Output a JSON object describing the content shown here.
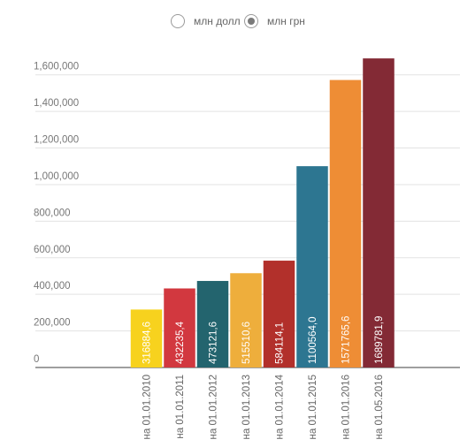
{
  "legend": {
    "options": [
      {
        "label": "млн долл",
        "selected": false
      },
      {
        "label": "млн грн",
        "selected": true
      }
    ]
  },
  "chart_data": {
    "type": "bar",
    "title": "",
    "xlabel": "",
    "ylabel": "",
    "ylim": [
      0,
      1700000
    ],
    "yticks": [
      0,
      200000,
      400000,
      600000,
      800000,
      1000000,
      1200000,
      1400000,
      1600000
    ],
    "ytick_labels": [
      "0",
      "200,000",
      "400,000",
      "600,000",
      "800,000",
      "1,000,000",
      "1,200,000",
      "1,400,000",
      "1,600,000"
    ],
    "grid": true,
    "categories": [
      "на 01.01.2010",
      "на 01.01.2011",
      "на 01.01.2012",
      "на 01.01.2013",
      "на 01.01.2014",
      "на 01.01.2015",
      "на 01.01.2016",
      "на 01.05.2016"
    ],
    "values": [
      316884.6,
      432235.4,
      473121.6,
      515510.6,
      584114.1,
      1100564.0,
      1571765.6,
      1689781.9
    ],
    "value_labels": [
      "316884,6",
      "432235,4",
      "473121,6",
      "515510,6",
      "584114,1",
      "1100564,0",
      "1571765,6",
      "1689781,9"
    ],
    "colors": [
      "#f7d21e",
      "#d2383f",
      "#23646e",
      "#eeae3c",
      "#b2302b",
      "#2d7691",
      "#ee8d35",
      "#832a35"
    ]
  }
}
